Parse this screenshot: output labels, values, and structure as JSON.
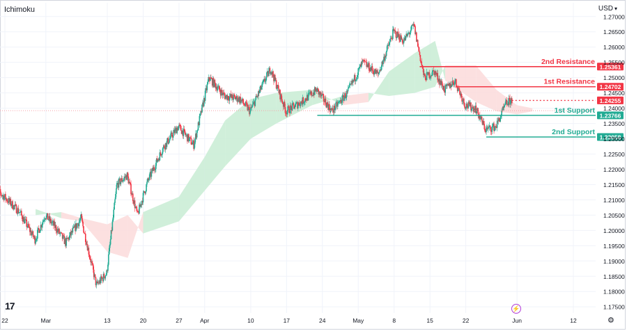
{
  "header": {
    "indicator": "Ichimoku",
    "currency": "USD"
  },
  "chart_data": {
    "type": "candlestick",
    "instrument_currency": "USD",
    "yaxis": {
      "range": [
        1.173,
        1.2745
      ],
      "ticks": [
        "1.27000",
        "1.26500",
        "1.26000",
        "1.25500",
        "1.25000",
        "1.24500",
        "1.24000",
        "1.23500",
        "1.23000",
        "1.22500",
        "1.22000",
        "1.21500",
        "1.21000",
        "1.20500",
        "1.20000",
        "1.19500",
        "1.19000",
        "1.18500",
        "1.18000",
        "1.17500"
      ]
    },
    "xaxis": {
      "ticks": [
        {
          "label": "22",
          "date": "2024-02-22"
        },
        {
          "label": "Mar",
          "date": "2024-03-01"
        },
        {
          "label": "13",
          "date": "2024-03-13"
        },
        {
          "label": "20",
          "date": "2024-03-20"
        },
        {
          "label": "27",
          "date": "2024-03-27"
        },
        {
          "label": "Apr",
          "date": "2024-04-01"
        },
        {
          "label": "10",
          "date": "2024-04-10"
        },
        {
          "label": "17",
          "date": "2024-04-17"
        },
        {
          "label": "24",
          "date": "2024-04-24"
        },
        {
          "label": "May",
          "date": "2024-05-01"
        },
        {
          "label": "8",
          "date": "2024-05-08"
        },
        {
          "label": "15",
          "date": "2024-05-15"
        },
        {
          "label": "22",
          "date": "2024-05-22"
        },
        {
          "label": "Jun",
          "date": "2024-06-01"
        },
        {
          "label": "12",
          "date": "2024-06-12"
        }
      ]
    },
    "price_path": [
      {
        "date": "2024-02-20",
        "price": 1.214
      },
      {
        "date": "2024-02-22",
        "price": 1.211
      },
      {
        "date": "2024-02-25",
        "price": 1.206
      },
      {
        "date": "2024-02-28",
        "price": 1.197
      },
      {
        "date": "2024-03-01",
        "price": 1.205
      },
      {
        "date": "2024-03-03",
        "price": 1.201
      },
      {
        "date": "2024-03-05",
        "price": 1.196
      },
      {
        "date": "2024-03-08",
        "price": 1.204
      },
      {
        "date": "2024-03-11",
        "price": 1.182
      },
      {
        "date": "2024-03-13",
        "price": 1.186
      },
      {
        "date": "2024-03-15",
        "price": 1.215
      },
      {
        "date": "2024-03-17",
        "price": 1.218
      },
      {
        "date": "2024-03-19",
        "price": 1.205
      },
      {
        "date": "2024-03-21",
        "price": 1.216
      },
      {
        "date": "2024-03-24",
        "price": 1.227
      },
      {
        "date": "2024-03-27",
        "price": 1.234
      },
      {
        "date": "2024-03-30",
        "price": 1.228
      },
      {
        "date": "2024-04-02",
        "price": 1.25
      },
      {
        "date": "2024-04-05",
        "price": 1.244
      },
      {
        "date": "2024-04-08",
        "price": 1.243
      },
      {
        "date": "2024-04-10",
        "price": 1.239
      },
      {
        "date": "2024-04-14",
        "price": 1.253
      },
      {
        "date": "2024-04-17",
        "price": 1.239
      },
      {
        "date": "2024-04-20",
        "price": 1.242
      },
      {
        "date": "2024-04-23",
        "price": 1.246
      },
      {
        "date": "2024-04-26",
        "price": 1.239
      },
      {
        "date": "2024-04-29",
        "price": 1.245
      },
      {
        "date": "2024-05-02",
        "price": 1.255
      },
      {
        "date": "2024-05-05",
        "price": 1.251
      },
      {
        "date": "2024-05-08",
        "price": 1.265
      },
      {
        "date": "2024-05-10",
        "price": 1.262
      },
      {
        "date": "2024-05-12",
        "price": 1.267
      },
      {
        "date": "2024-05-14",
        "price": 1.25
      },
      {
        "date": "2024-05-16",
        "price": 1.252
      },
      {
        "date": "2024-05-18",
        "price": 1.246
      },
      {
        "date": "2024-05-20",
        "price": 1.249
      },
      {
        "date": "2024-05-22",
        "price": 1.241
      },
      {
        "date": "2024-05-24",
        "price": 1.24
      },
      {
        "date": "2024-05-26",
        "price": 1.233
      },
      {
        "date": "2024-05-28",
        "price": 1.234
      },
      {
        "date": "2024-05-30",
        "price": 1.2415
      },
      {
        "date": "2024-05-31",
        "price": 1.24255
      }
    ],
    "ichimoku_cloud": [
      {
        "date": "2024-02-28",
        "a": 1.207,
        "b": 1.205
      },
      {
        "date": "2024-03-04",
        "a": 1.204,
        "b": 1.206
      },
      {
        "date": "2024-03-08",
        "a": 1.203,
        "b": 1.204
      },
      {
        "date": "2024-03-13",
        "a": 1.193,
        "b": 1.202
      },
      {
        "date": "2024-03-17",
        "a": 1.191,
        "b": 1.205
      },
      {
        "date": "2024-03-20",
        "a": 1.206,
        "b": 1.199
      },
      {
        "date": "2024-03-27",
        "a": 1.211,
        "b": 1.203
      },
      {
        "date": "2024-04-01",
        "a": 1.224,
        "b": 1.213
      },
      {
        "date": "2024-04-05",
        "a": 1.236,
        "b": 1.221
      },
      {
        "date": "2024-04-10",
        "a": 1.243,
        "b": 1.23
      },
      {
        "date": "2024-04-15",
        "a": 1.245,
        "b": 1.235
      },
      {
        "date": "2024-04-22",
        "a": 1.246,
        "b": 1.241
      },
      {
        "date": "2024-04-28",
        "a": 1.241,
        "b": 1.244
      },
      {
        "date": "2024-05-03",
        "a": 1.242,
        "b": 1.245
      },
      {
        "date": "2024-05-07",
        "a": 1.252,
        "b": 1.244
      },
      {
        "date": "2024-05-12",
        "a": 1.258,
        "b": 1.245
      },
      {
        "date": "2024-05-16",
        "a": 1.262,
        "b": 1.247
      },
      {
        "date": "2024-05-18",
        "a": 1.249,
        "b": 1.254
      },
      {
        "date": "2024-05-24",
        "a": 1.242,
        "b": 1.254
      },
      {
        "date": "2024-05-28",
        "a": 1.239,
        "b": 1.246
      },
      {
        "date": "2024-06-01",
        "a": 1.238,
        "b": 1.241
      },
      {
        "date": "2024-06-04",
        "a": 1.239,
        "b": 1.24
      }
    ],
    "levels": [
      {
        "name": "2nd Resistance",
        "value": 1.25361,
        "label": "1.25361",
        "color": "#f23645",
        "start": "2024-05-13"
      },
      {
        "name": "1st Resistance",
        "value": 1.24702,
        "label": "1.24702",
        "color": "#f23645",
        "start": "2024-05-20"
      },
      {
        "name": "1st Support",
        "value": 1.23766,
        "label": "1.23766",
        "color": "#22ab94",
        "start": "2024-04-23"
      },
      {
        "name": "2nd Support",
        "value": 1.23058,
        "label": "1.23058",
        "color": "#22ab94",
        "start": "2024-05-26"
      }
    ],
    "current_price": {
      "value": 1.24255,
      "label": "1.24255",
      "color": "#f23645"
    },
    "colors": {
      "up": "#22ab94",
      "down": "#f23645",
      "cloud_up": "#c8ecd3",
      "cloud_down": "#fcdada",
      "grid": "#f0f3fa",
      "text": "#131722"
    },
    "grid": true
  },
  "icons": [
    "tradingview-logo-icon",
    "lightning-icon",
    "settings-gear-icon",
    "chevron-down-icon"
  ]
}
